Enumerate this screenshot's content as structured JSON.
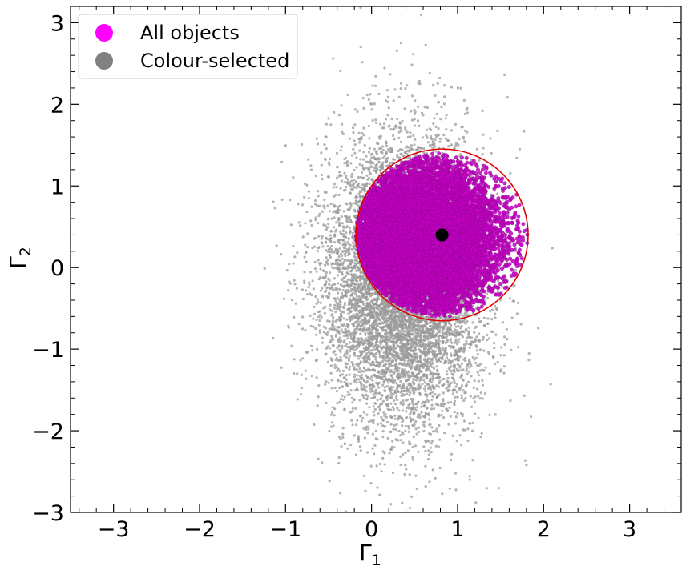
{
  "chart_data": {
    "type": "scatter",
    "xlabel": "Γ1",
    "ylabel": "Γ2",
    "xlim": [
      -3.5,
      3.6
    ],
    "ylim": [
      -3.0,
      3.2
    ],
    "xticks": [
      "−3",
      "−2",
      "−1",
      "0",
      "1",
      "2",
      "3"
    ],
    "yticks": [
      "−3",
      "−2",
      "−1",
      "0",
      "1",
      "2",
      "3"
    ],
    "grid": false,
    "legend_position": "top-left",
    "legend": [
      {
        "label": "All objects",
        "color": "#ff00ff"
      },
      {
        "label": "Colour-selected",
        "color": "#808080"
      }
    ],
    "series": [
      {
        "name": "Colour-selected",
        "color": "#999999",
        "approx_count": 9000,
        "center": [
          0.35,
          -0.15
        ],
        "spread": [
          0.45,
          0.85
        ]
      },
      {
        "name": "All objects",
        "color": "#c000c0",
        "approx_count": 12000,
        "selection_region_center": [
          0.82,
          0.4
        ],
        "selection_region_radius": 1.0
      }
    ],
    "annotations": {
      "centroid": {
        "x": 0.82,
        "y": 0.4,
        "color": "#000000"
      },
      "selection_circle": {
        "x": 0.82,
        "y": 0.4,
        "r": 1.0,
        "color": "#e00000"
      }
    }
  }
}
